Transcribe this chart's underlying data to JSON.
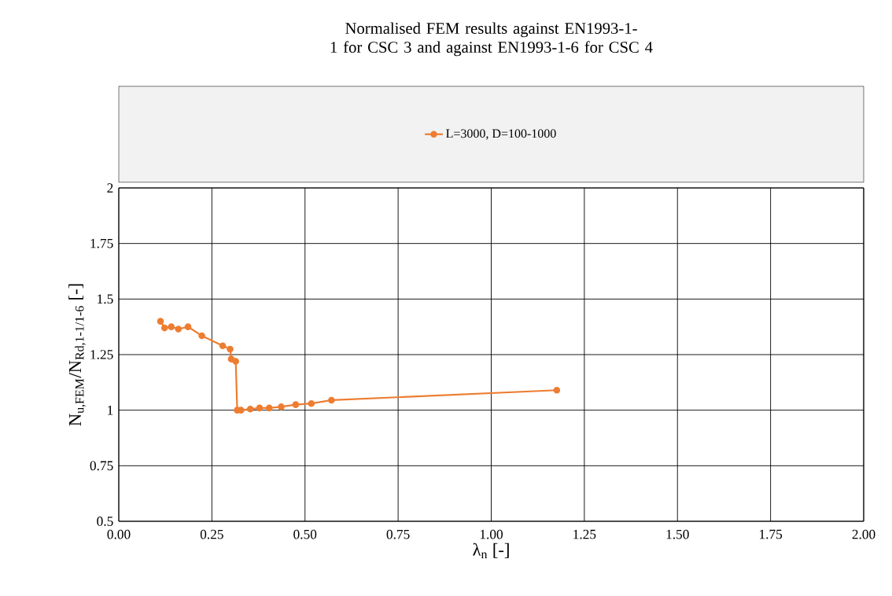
{
  "chart_data": {
    "type": "line",
    "title": "Normalised FEM results against EN1993-1-1 for CSC 3 and against EN1993-1-6 for CSC 4",
    "xlabel": "λ$_{n}$ [-]",
    "ylabel": "N$_{u,FEM}$/N$_{Rd,1-1/1-6}$ [-]",
    "series": [
      {
        "name": "L=3000, D=100-1000",
        "color": "#ed7d31",
        "x": [
          0.112,
          0.123,
          0.141,
          0.16,
          0.186,
          0.223,
          0.279,
          0.299,
          0.302,
          0.314,
          0.318,
          0.328,
          0.353,
          0.378,
          0.404,
          0.436,
          0.475,
          0.517,
          0.571,
          1.176
        ],
        "values": [
          1.4,
          1.37,
          1.375,
          1.365,
          1.375,
          1.335,
          1.29,
          1.275,
          1.23,
          1.22,
          1.0,
          1.0,
          1.005,
          1.01,
          1.01,
          1.015,
          1.025,
          1.03,
          1.045,
          1.09
        ]
      }
    ],
    "xlim": [
      0,
      2
    ],
    "ylim": [
      0.5,
      2
    ],
    "xticks": [
      {
        "value": 0,
        "label": "0.00"
      },
      {
        "value": 0.25,
        "label": "0.25"
      },
      {
        "value": 0.5,
        "label": "0.50"
      },
      {
        "value": 0.75,
        "label": "0.75"
      },
      {
        "value": 1,
        "label": "1.00"
      },
      {
        "value": 1.25,
        "label": "1.25"
      },
      {
        "value": 1.5,
        "label": "1.50"
      },
      {
        "value": 1.75,
        "label": "1.75"
      },
      {
        "value": 2,
        "label": "2.00"
      }
    ],
    "yticks": [
      0.5,
      0.75,
      1,
      1.25,
      1.5,
      1.75,
      2
    ],
    "grid": true,
    "legend": "top",
    "marker": "circle",
    "line_style": "solid"
  }
}
